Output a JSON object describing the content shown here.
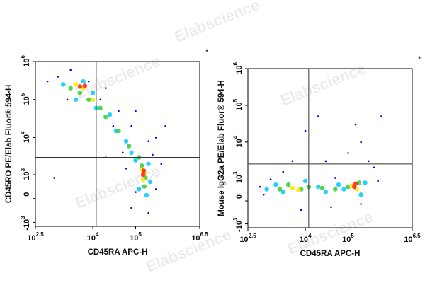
{
  "watermark": "Elabscience",
  "chart_data": [
    {
      "type": "scatter",
      "xlabel": "CD45RA APC-H",
      "ylabel": "CD45RO PE/Elab Fluor® 594-H",
      "annotation": "*",
      "scale": "asinh",
      "asinh_cofactor": 500,
      "xlim": [
        316.2,
        3162278
      ],
      "ylim": [
        -1300,
        1000000
      ],
      "xticks": [
        {
          "value": 316.2,
          "label": "10",
          "sup": "2.5"
        },
        {
          "value": 10000,
          "label": "10",
          "sup": "4"
        },
        {
          "value": 100000,
          "label": "10",
          "sup": "5"
        },
        {
          "value": 3162278,
          "label": "10",
          "sup": "6.5"
        }
      ],
      "yticks": [
        {
          "value": -1000,
          "label": "-10",
          "sup": "3"
        },
        0,
        {
          "value": 1000,
          "label": "10",
          "sup": "3"
        },
        {
          "value": 10000,
          "label": "10",
          "sup": "4"
        },
        {
          "value": 100000,
          "label": "10",
          "sup": "5"
        },
        {
          "value": 1000000,
          "label": "10",
          "sup": "6"
        }
      ],
      "gates": {
        "x": 12000,
        "y": 3000
      },
      "series": [
        {
          "color": "#0000ff",
          "x": [
            800,
            1500,
            2500,
            3000,
            8000,
            15000,
            20000,
            30000,
            40000,
            50000,
            80000,
            100000,
            200000,
            300000,
            500000,
            400000,
            300000,
            200000,
            80000,
            100000,
            60000,
            1200,
            20000,
            250000
          ],
          "values": [
            300000,
            400000,
            100000,
            600000,
            300000,
            100000,
            200000,
            20000,
            50000,
            4000,
            20000,
            50000,
            8000,
            10000,
            20000,
            2000,
            300,
            -500,
            -300,
            200,
            1500,
            800,
            3000,
            3500
          ]
        },
        {
          "color": "#00c8ff",
          "x": [
            2000,
            4000,
            6000,
            10000,
            12000,
            25000,
            35000,
            60000,
            80000,
            100000,
            200000,
            120000,
            180000,
            220000
          ],
          "values": [
            250000,
            100000,
            300000,
            150000,
            60000,
            40000,
            15000,
            8000,
            4000,
            2500,
            2000,
            300,
            100,
            600
          ]
        },
        {
          "color": "#32cd32",
          "x": [
            3000,
            5000,
            8000,
            15000,
            20000,
            40000,
            70000,
            120000,
            140000,
            170000,
            160000
          ],
          "values": [
            200000,
            150000,
            100000,
            60000,
            35000,
            15000,
            6000,
            3000,
            1800,
            800,
            400
          ]
        },
        {
          "color": "#ffe600",
          "x": [
            4000,
            6000,
            10000,
            140000,
            160000,
            150000
          ],
          "values": [
            250000,
            200000,
            100000,
            1400,
            1100,
            700
          ]
        },
        {
          "color": "#ff2000",
          "x": [
            5000,
            6500,
            150000,
            155000
          ],
          "values": [
            220000,
            230000,
            1000,
            1300
          ]
        }
      ]
    },
    {
      "type": "scatter",
      "xlabel": "CD45RA APC-H",
      "ylabel": "Mouse IgG2a PE/Elab Fluor® 594-H",
      "annotation": "*",
      "scale": "asinh",
      "asinh_cofactor": 500,
      "xlim": [
        316.2,
        3162278
      ],
      "ylim": [
        -1300,
        1000000
      ],
      "xticks": [
        {
          "value": 316.2,
          "label": "10",
          "sup": "2.5"
        },
        {
          "value": 10000,
          "label": "10",
          "sup": "4"
        },
        {
          "value": 100000,
          "label": "10",
          "sup": "5"
        },
        {
          "value": 3162278,
          "label": "10",
          "sup": "6.5"
        }
      ],
      "yticks": [
        {
          "value": -1000,
          "label": "-10",
          "sup": "3"
        },
        0,
        {
          "value": 1000,
          "label": "10",
          "sup": "3"
        },
        {
          "value": 10000,
          "label": "10",
          "sup": "4"
        },
        {
          "value": 100000,
          "label": "10",
          "sup": "5"
        },
        {
          "value": 1000000,
          "label": "10",
          "sup": "6"
        }
      ],
      "gates": {
        "x": 12000,
        "y": 2500
      },
      "series": [
        {
          "color": "#0000ff",
          "x": [
            800,
            1000,
            1500,
            3000,
            5000,
            10000,
            20000,
            30000,
            50000,
            100000,
            200000,
            300000,
            400000,
            500000,
            150000,
            8000,
            40000,
            200000,
            600000
          ],
          "values": [
            500,
            200,
            900,
            1500,
            3000,
            20000,
            50000,
            3000,
            1000,
            5000,
            10000,
            3000,
            2000,
            800,
            30000,
            -300,
            -200,
            -100,
            50000
          ]
        },
        {
          "color": "#00c8ff",
          "x": [
            1200,
            2000,
            3000,
            10000,
            20000,
            30000,
            60000,
            80000,
            250000,
            200000
          ],
          "values": [
            400,
            600,
            300,
            800,
            500,
            300,
            600,
            400,
            700,
            200
          ]
        },
        {
          "color": "#32cd32",
          "x": [
            2500,
            4000,
            8000,
            12000,
            25000,
            50000,
            100000,
            180000
          ],
          "values": [
            400,
            600,
            400,
            500,
            450,
            400,
            500,
            700
          ]
        },
        {
          "color": "#ffe600",
          "x": [
            5000,
            7000,
            120000,
            160000
          ],
          "values": [
            450,
            380,
            550,
            400
          ]
        },
        {
          "color": "#ff2000",
          "x": [
            140000,
            150000
          ],
          "values": [
            500,
            650
          ]
        }
      ]
    }
  ]
}
